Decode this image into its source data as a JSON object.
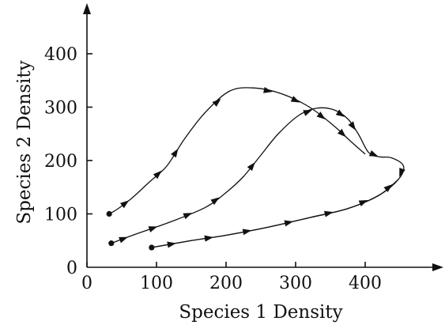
{
  "chart_data": {
    "type": "line",
    "title": "",
    "xlabel": "Species 1 Density",
    "ylabel": "Species 2 Density",
    "xlim": [
      0,
      500
    ],
    "ylim": [
      0,
      460
    ],
    "xticks": [
      0,
      100,
      200,
      300,
      400
    ],
    "yticks": [
      0,
      100,
      200,
      300,
      400
    ],
    "grid": false,
    "legend": "none",
    "series": [
      {
        "start_marker": "dot",
        "points": [
          [
            32,
            100
          ],
          [
            45,
            110
          ],
          [
            65,
            130
          ],
          [
            90,
            160
          ],
          [
            115,
            190
          ],
          [
            140,
            240
          ],
          [
            170,
            290
          ],
          [
            205,
            330
          ],
          [
            240,
            336
          ],
          [
            280,
            325
          ],
          [
            320,
            300
          ],
          [
            355,
            265
          ],
          [
            380,
            235
          ],
          [
            400,
            212
          ]
        ],
        "arrows_at": [
          2,
          4,
          5,
          7,
          9,
          10,
          11,
          12
        ]
      },
      {
        "start_marker": "dot",
        "points": [
          [
            35,
            45
          ],
          [
            70,
            62
          ],
          [
            120,
            85
          ],
          [
            170,
            112
          ],
          [
            200,
            140
          ],
          [
            225,
            170
          ],
          [
            250,
            210
          ],
          [
            275,
            250
          ],
          [
            305,
            285
          ],
          [
            330,
            298
          ],
          [
            355,
            295
          ],
          [
            375,
            278
          ],
          [
            390,
            250
          ],
          [
            405,
            215
          ],
          [
            420,
            207
          ],
          [
            438,
            205
          ],
          [
            455,
            190
          ],
          [
            448,
            165
          ],
          [
            420,
            135
          ],
          [
            375,
            110
          ],
          [
            320,
            93
          ],
          [
            260,
            75
          ],
          [
            200,
            60
          ],
          [
            150,
            50
          ],
          [
            93,
            37
          ]
        ],
        "arrows_at": [
          1,
          2,
          3,
          4,
          6,
          9,
          11,
          12,
          14,
          17
        ]
      },
      {
        "start_marker": "dot",
        "points": [
          [
            93,
            37
          ],
          [
            150,
            50
          ],
          [
            200,
            60
          ],
          [
            260,
            75
          ],
          [
            320,
            93
          ],
          [
            375,
            110
          ],
          [
            420,
            135
          ],
          [
            448,
            165
          ]
        ],
        "arrows_at": [
          1,
          2,
          3,
          4,
          5,
          6,
          7
        ]
      }
    ]
  }
}
